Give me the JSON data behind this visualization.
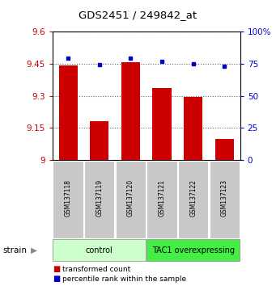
{
  "title": "GDS2451 / 249842_at",
  "samples": [
    "GSM137118",
    "GSM137119",
    "GSM137120",
    "GSM137121",
    "GSM137122",
    "GSM137123"
  ],
  "transformed_counts": [
    9.44,
    9.18,
    9.455,
    9.335,
    9.295,
    9.1
  ],
  "percentile_ranks": [
    79,
    74,
    79,
    77,
    75,
    73
  ],
  "ylim_left": [
    9.0,
    9.6
  ],
  "yticks_left": [
    9.0,
    9.15,
    9.3,
    9.45,
    9.6
  ],
  "ytick_labels_left": [
    "9",
    "9.15",
    "9.3",
    "9.45",
    "9.6"
  ],
  "ylim_right": [
    0,
    100
  ],
  "yticks_right": [
    0,
    25,
    50,
    75,
    100
  ],
  "ytick_labels_right": [
    "0",
    "25",
    "50",
    "75",
    "100%"
  ],
  "bar_color": "#cc0000",
  "dot_color": "#0000cc",
  "groups": [
    {
      "label": "control",
      "indices": [
        0,
        1,
        2
      ],
      "color": "#ccffcc"
    },
    {
      "label": "TAC1 overexpressing",
      "indices": [
        3,
        4,
        5
      ],
      "color": "#44ee44"
    }
  ],
  "legend_bar_label": "transformed count",
  "legend_dot_label": "percentile rank within the sample",
  "strain_label": "strain",
  "bar_color_left": "#cc0000",
  "tick_color_right": "#0000cc",
  "sample_box_color": "#c8c8c8",
  "bar_width": 0.6
}
